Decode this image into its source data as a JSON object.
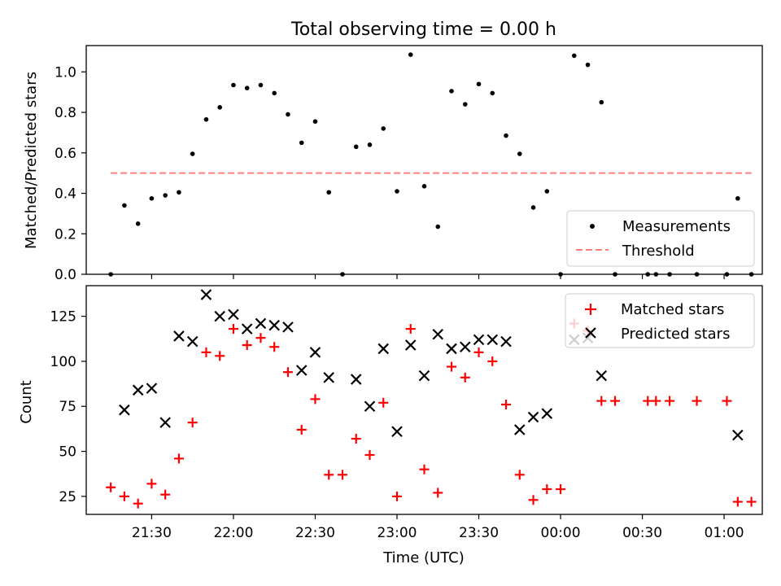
{
  "title": "Total observing time = 0.00 h",
  "chart_data": [
    {
      "type": "scatter",
      "ylabel": "Matched/Predicted stars",
      "ylim": [
        0,
        1.13
      ],
      "yticks": [
        0.0,
        0.2,
        0.4,
        0.6,
        0.8,
        1.0
      ],
      "ytick_labels": [
        "0.0",
        "0.2",
        "0.4",
        "0.6",
        "0.8",
        "1.0"
      ],
      "legend_position": "lower-right",
      "series": [
        {
          "name": "Measurements",
          "marker": "dot",
          "color": "#000000",
          "points": [
            [
              "21:15",
              0.0
            ],
            [
              "21:20",
              0.34
            ],
            [
              "21:25",
              0.25
            ],
            [
              "21:30",
              0.375
            ],
            [
              "21:35",
              0.39
            ],
            [
              "21:40",
              0.405
            ],
            [
              "21:45",
              0.595
            ],
            [
              "21:50",
              0.765
            ],
            [
              "21:55",
              0.825
            ],
            [
              "22:00",
              0.935
            ],
            [
              "22:05",
              0.92
            ],
            [
              "22:10",
              0.935
            ],
            [
              "22:15",
              0.895
            ],
            [
              "22:20",
              0.79
            ],
            [
              "22:25",
              0.65
            ],
            [
              "22:30",
              0.755
            ],
            [
              "22:35",
              0.405
            ],
            [
              "22:40",
              0.0
            ],
            [
              "22:45",
              0.63
            ],
            [
              "22:50",
              0.64
            ],
            [
              "22:55",
              0.72
            ],
            [
              "23:00",
              0.41
            ],
            [
              "23:05",
              1.085
            ],
            [
              "23:10",
              0.435
            ],
            [
              "23:15",
              0.235
            ],
            [
              "23:20",
              0.905
            ],
            [
              "23:25",
              0.84
            ],
            [
              "23:30",
              0.94
            ],
            [
              "23:35",
              0.895
            ],
            [
              "23:40",
              0.685
            ],
            [
              "23:45",
              0.595
            ],
            [
              "23:50",
              0.33
            ],
            [
              "23:55",
              0.41
            ],
            [
              "00:00",
              0.0
            ],
            [
              "00:05",
              1.08
            ],
            [
              "00:10",
              1.035
            ],
            [
              "00:15",
              0.85
            ],
            [
              "00:20",
              0.0
            ],
            [
              "00:32",
              0.0
            ],
            [
              "00:35",
              0.0
            ],
            [
              "00:40",
              0.0
            ],
            [
              "00:50",
              0.0
            ],
            [
              "01:01",
              0.0
            ],
            [
              "01:05",
              0.375
            ],
            [
              "01:10",
              0.0
            ]
          ]
        },
        {
          "name": "Threshold",
          "line": "dashed",
          "color": "#ff7f7f",
          "points": [
            [
              "21:15",
              0.5
            ],
            [
              "01:10",
              0.5
            ]
          ]
        }
      ]
    },
    {
      "type": "scatter",
      "xlabel": "Time (UTC)",
      "ylabel": "Count",
      "ylim": [
        15,
        142
      ],
      "yticks": [
        25,
        50,
        75,
        100,
        125
      ],
      "ytick_labels": [
        "25",
        "50",
        "75",
        "100",
        "125"
      ],
      "xticks": [
        "21:30",
        "22:00",
        "22:30",
        "23:00",
        "23:30",
        "00:00",
        "00:30",
        "01:00"
      ],
      "legend_position": "upper-right",
      "series": [
        {
          "name": "Matched stars",
          "marker": "plus",
          "color": "#ff0000",
          "points": [
            [
              "21:15",
              30
            ],
            [
              "21:20",
              25
            ],
            [
              "21:25",
              21
            ],
            [
              "21:30",
              32
            ],
            [
              "21:35",
              26
            ],
            [
              "21:40",
              46
            ],
            [
              "21:45",
              66
            ],
            [
              "21:50",
              105
            ],
            [
              "21:55",
              103
            ],
            [
              "22:00",
              118
            ],
            [
              "22:05",
              109
            ],
            [
              "22:10",
              113
            ],
            [
              "22:15",
              108
            ],
            [
              "22:20",
              94
            ],
            [
              "22:25",
              62
            ],
            [
              "22:30",
              79
            ],
            [
              "22:35",
              37
            ],
            [
              "22:40",
              37
            ],
            [
              "22:45",
              57
            ],
            [
              "22:50",
              48
            ],
            [
              "22:55",
              77
            ],
            [
              "23:00",
              25
            ],
            [
              "23:05",
              118
            ],
            [
              "23:10",
              40
            ],
            [
              "23:15",
              27
            ],
            [
              "23:20",
              97
            ],
            [
              "23:25",
              91
            ],
            [
              "23:30",
              105
            ],
            [
              "23:35",
              100
            ],
            [
              "23:40",
              76
            ],
            [
              "23:45",
              37
            ],
            [
              "23:50",
              23
            ],
            [
              "23:55",
              29
            ],
            [
              "00:00",
              29
            ],
            [
              "00:05",
              121
            ],
            [
              "00:10",
              117
            ],
            [
              "00:15",
              78
            ],
            [
              "00:20",
              78
            ],
            [
              "00:32",
              78
            ],
            [
              "00:35",
              78
            ],
            [
              "00:40",
              78
            ],
            [
              "00:50",
              78
            ],
            [
              "01:01",
              78
            ],
            [
              "01:05",
              22
            ],
            [
              "01:10",
              22
            ]
          ]
        },
        {
          "name": "Predicted stars",
          "marker": "x",
          "color": "#000000",
          "points": [
            [
              "21:20",
              73
            ],
            [
              "21:25",
              84
            ],
            [
              "21:30",
              85
            ],
            [
              "21:35",
              66
            ],
            [
              "21:40",
              114
            ],
            [
              "21:45",
              111
            ],
            [
              "21:50",
              137
            ],
            [
              "21:55",
              125
            ],
            [
              "22:00",
              126
            ],
            [
              "22:05",
              118
            ],
            [
              "22:10",
              121
            ],
            [
              "22:15",
              120
            ],
            [
              "22:20",
              119
            ],
            [
              "22:25",
              95
            ],
            [
              "22:30",
              105
            ],
            [
              "22:35",
              91
            ],
            [
              "22:45",
              90
            ],
            [
              "22:50",
              75
            ],
            [
              "22:55",
              107
            ],
            [
              "23:00",
              61
            ],
            [
              "23:05",
              109
            ],
            [
              "23:10",
              92
            ],
            [
              "23:15",
              115
            ],
            [
              "23:20",
              107
            ],
            [
              "23:25",
              108
            ],
            [
              "23:30",
              112
            ],
            [
              "23:35",
              112
            ],
            [
              "23:40",
              111
            ],
            [
              "23:45",
              62
            ],
            [
              "23:50",
              69
            ],
            [
              "23:55",
              71
            ],
            [
              "00:05",
              112
            ],
            [
              "00:10",
              113
            ],
            [
              "00:15",
              92
            ],
            [
              "01:05",
              59
            ]
          ]
        }
      ]
    }
  ]
}
